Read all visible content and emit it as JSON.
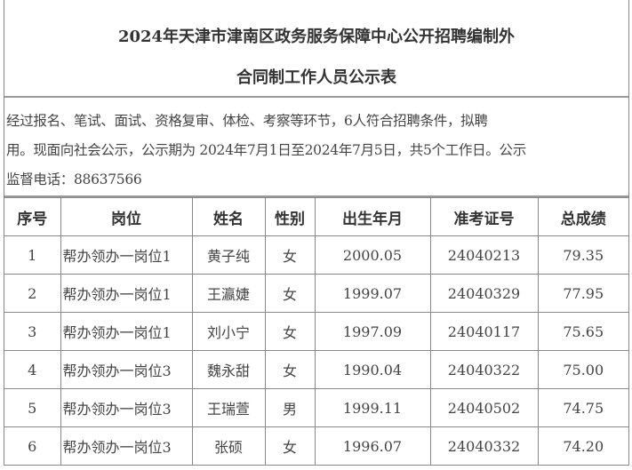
{
  "title": {
    "line1": "2024年天津市津南区政务服务保障中心公开招聘编制外",
    "line2": "合同制工作人员公示表"
  },
  "notice": {
    "line1": "经过报名、笔试、面试、资格复审、体检、考察等环节，6人符合招聘条件，拟聘",
    "line2": "用。现面向社会公示，公示期为 2024年7月1日至2024年7月5日，共5个工作日。公示",
    "line3": "监督电话：88637566"
  },
  "table": {
    "headers": [
      "序号",
      "岗位",
      "姓名",
      "性别",
      "出生年月",
      "准考证号",
      "总成绩"
    ],
    "rows": [
      [
        "1",
        "帮办领办一岗位1",
        "黄子纯",
        "女",
        "2000.05",
        "24040213",
        "79.35"
      ],
      [
        "2",
        "帮办领办一岗位1",
        "王瀛婕",
        "女",
        "1999.07",
        "24040329",
        "77.95"
      ],
      [
        "3",
        "帮办领办一岗位1",
        "刘小宁",
        "女",
        "1997.09",
        "24040117",
        "75.65"
      ],
      [
        "4",
        "帮办领办一岗位3",
        "魏永甜",
        "女",
        "1990.04",
        "24040322",
        "75.00"
      ],
      [
        "5",
        "帮办领办一岗位3",
        "王瑞萱",
        "男",
        "1999.11",
        "24040502",
        "74.75"
      ],
      [
        "6",
        "帮办领办一岗位3",
        "张硕",
        "女",
        "1996.07",
        "24040332",
        "74.20"
      ]
    ]
  }
}
